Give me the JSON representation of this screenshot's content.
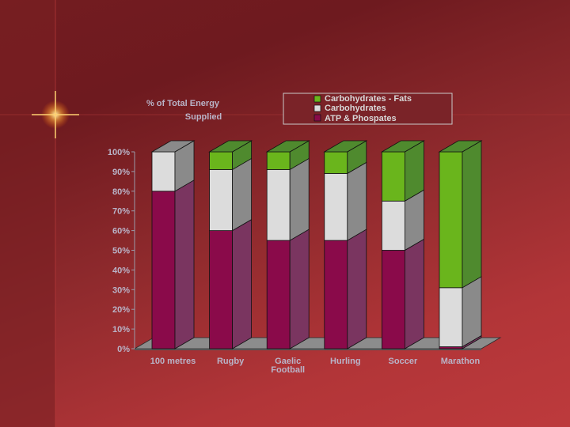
{
  "colors": {
    "atp": "#8a0a4a",
    "atp_side": "#7a3560",
    "carb": "#dcdcdc",
    "carb_side": "#8a8a8a",
    "cf": "#6ab51c",
    "cf_side": "#4f8a2e",
    "tick_text": "#b9b4c8",
    "legend_bg": "#7a2328"
  },
  "chart_data": {
    "type": "bar",
    "stacked": true,
    "three_d": true,
    "ylabel": "% of Total Energy Supplied",
    "ylim": [
      0,
      100
    ],
    "yticks": [
      "0%",
      "10%",
      "20%",
      "30%",
      "40%",
      "50%",
      "60%",
      "70%",
      "80%",
      "90%",
      "100%"
    ],
    "categories": [
      "100 metres",
      "Rugby",
      "Gaelic Football",
      "Hurling",
      "Soccer",
      "Marathon"
    ],
    "series": [
      {
        "name": "ATP & Phospates",
        "color_key": "atp",
        "values": [
          80,
          60,
          55,
          55,
          50,
          1
        ]
      },
      {
        "name": "Carbohydrates",
        "color_key": "carb",
        "values": [
          20,
          31,
          36,
          34,
          25,
          30
        ]
      },
      {
        "name": "Carbohydrates - Fats",
        "color_key": "cf",
        "values": [
          0,
          9,
          9,
          11,
          25,
          69
        ]
      }
    ],
    "legend": {
      "position": "top-right",
      "entries": [
        "Carbohydrates - Fats",
        "Carbohydrates",
        "ATP & Phospates"
      ]
    }
  }
}
